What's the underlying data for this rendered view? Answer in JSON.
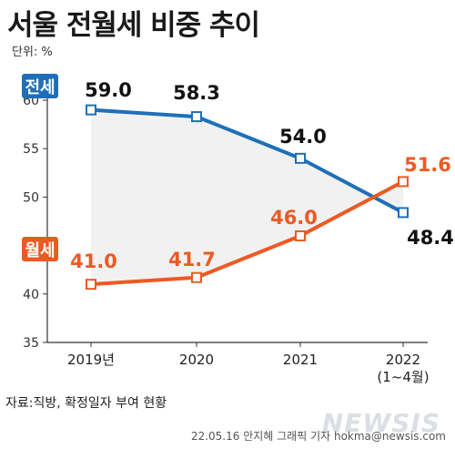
{
  "title": "서울 전월세 비중 추이",
  "unit": "단위: %",
  "source": "자료:직방, 확정일자 부여 현황",
  "credit": "22.05.16 안지혜 그래픽 기자  hokma@newsis.com",
  "watermark": "NEWSIS",
  "colors": {
    "jeonse": "#1f6fb8",
    "wolse": "#ec5a24",
    "gap": "#eeeeee"
  },
  "chart_data": {
    "type": "line",
    "title": "서울 전월세 비중 추이",
    "ylabel": "단위: %",
    "categories": [
      "2019년",
      "2020",
      "2021",
      "2022"
    ],
    "category_sublabels": [
      "",
      "",
      "",
      "(1~4월)"
    ],
    "ylim": [
      35,
      60
    ],
    "yticks": [
      35,
      40,
      45,
      50,
      55,
      60
    ],
    "grid": false,
    "series": [
      {
        "name": "전세",
        "values": [
          59.0,
          58.3,
          54.0,
          48.4
        ],
        "labels": [
          "59.0",
          "58.3",
          "54.0",
          "48.4"
        ]
      },
      {
        "name": "월세",
        "values": [
          41.0,
          41.7,
          46.0,
          51.6
        ],
        "labels": [
          "41.0",
          "41.7",
          "46.0",
          "51.6"
        ]
      }
    ]
  }
}
